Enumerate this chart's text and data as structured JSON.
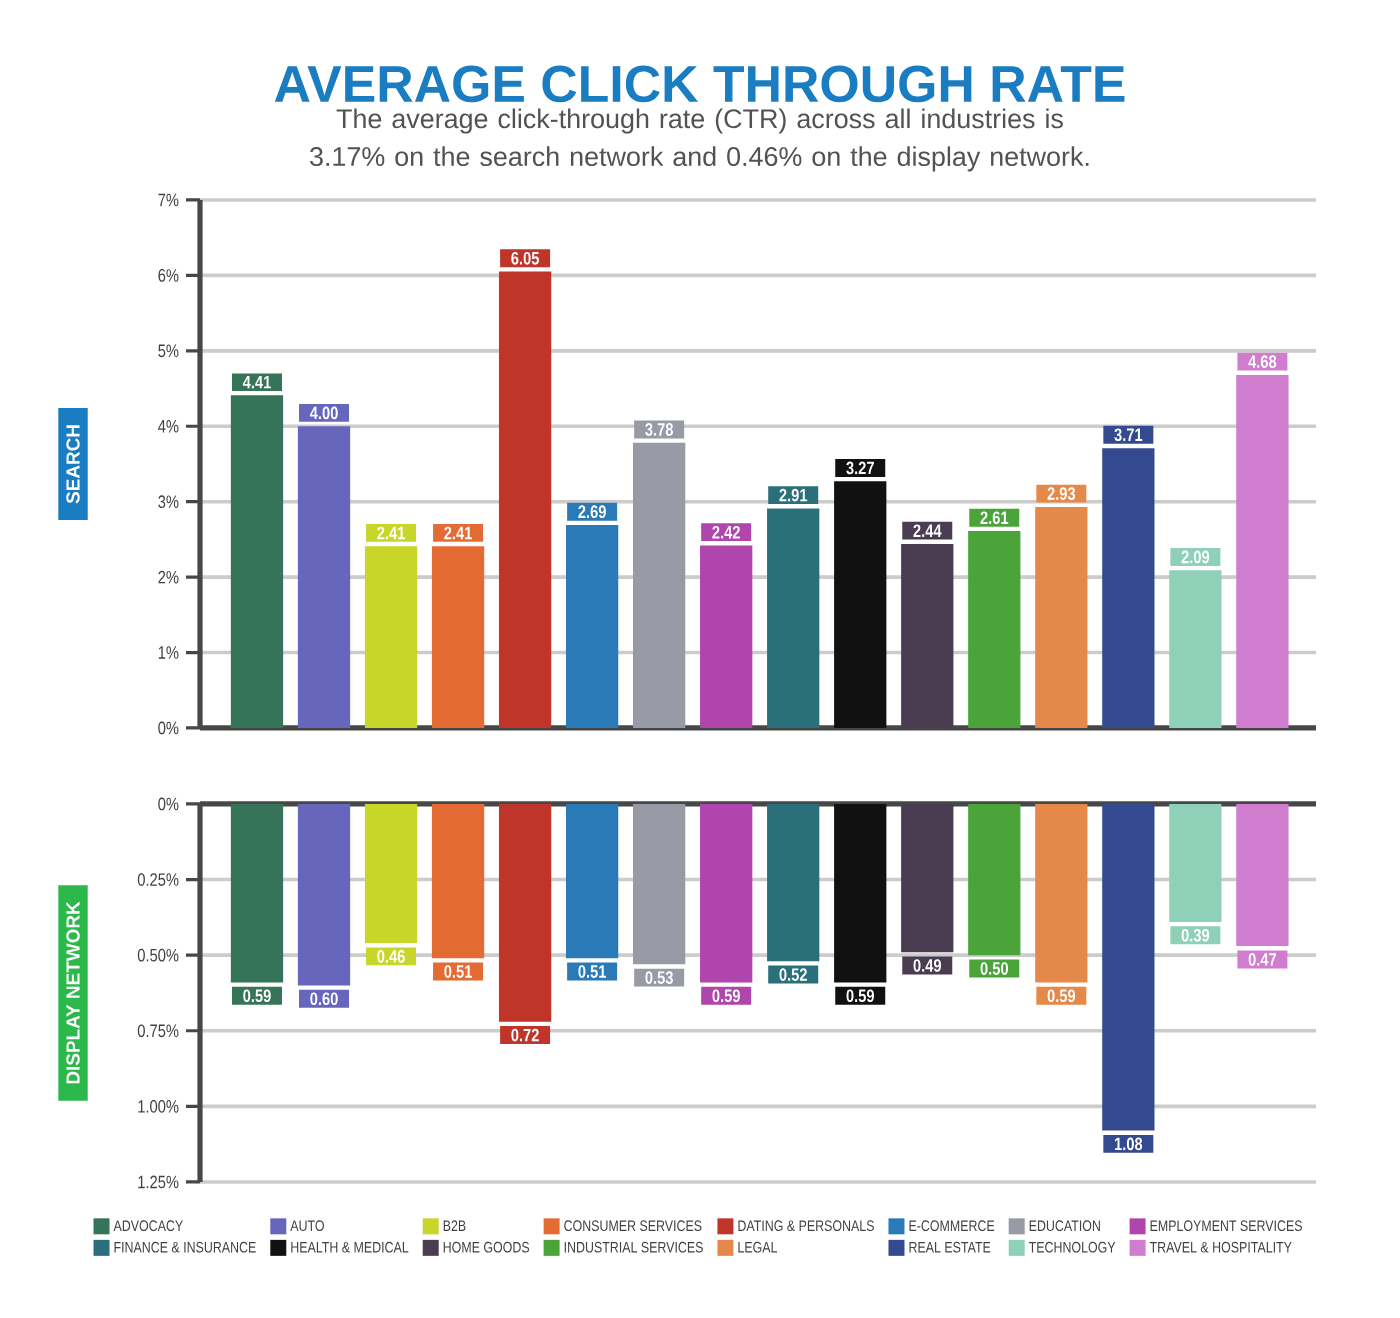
{
  "chart_data": [
    {
      "type": "bar",
      "title": "AVERAGE CLICK THROUGH RATE",
      "subtitle": "The average click-through rate (CTR) across all industries is 3.17% on the search network and 0.46% on the display network.",
      "ylabel": "SEARCH",
      "categories": [
        null,
        null,
        null,
        null,
        null,
        null,
        null,
        null,
        null,
        null,
        null,
        null,
        null,
        null,
        null,
        null
      ],
      "values": [
        4.41,
        4.0,
        2.41,
        2.41,
        6.05,
        2.69,
        3.78,
        2.42,
        2.91,
        3.27,
        2.44,
        2.61,
        2.93,
        3.71,
        2.09,
        4.68
      ],
      "value_labels": [
        "4.41",
        "4.00",
        "2.41",
        "2.41",
        "6.05",
        "2.69",
        "3.78",
        "2.42",
        "2.91",
        "3.27",
        "2.44",
        "2.61",
        "2.93",
        "3.71",
        "2.09",
        "4.68"
      ],
      "colors": [
        "#367459",
        "#6766bd",
        "#c8d62a",
        "#e56b35",
        "#c0352a",
        "#2a7ab8",
        "#989aa6",
        "#b045ad",
        "#2a6f7a",
        "#111111",
        "#4a3d52",
        "#4aa43a",
        "#e5894a",
        "#344a90",
        "#8fd0b8",
        "#d07ccf"
      ],
      "ylim": [
        0,
        7
      ],
      "yticks": [
        {
          "value": 0,
          "label": "0%"
        },
        {
          "value": 1,
          "label": "1%"
        },
        {
          "value": 2,
          "label": "2%"
        },
        {
          "value": 3,
          "label": "3%"
        },
        {
          "value": 4,
          "label": "4%"
        },
        {
          "value": 5,
          "label": "5%"
        },
        {
          "value": 6,
          "label": "6%"
        },
        {
          "value": 7,
          "label": "7%"
        }
      ],
      "grid": "y"
    },
    {
      "type": "bar",
      "ylabel": "DISPLAY NETWORK",
      "categories": [
        null,
        null,
        null,
        null,
        null,
        null,
        null,
        null,
        null,
        null,
        null,
        null,
        null,
        null,
        null,
        null
      ],
      "series": [
        {
          "name": "ADVOCACY",
          "color": "#367459",
          "values": [
            0.59,
            null,
            null,
            null,
            null,
            null,
            null,
            null,
            null,
            null,
            null,
            null,
            null,
            null,
            null,
            null
          ],
          "value_labels": [
            "0.59",
            null,
            null,
            null,
            null,
            null,
            null,
            null,
            null,
            null,
            null,
            null,
            null,
            null,
            null,
            null
          ]
        },
        {
          "name": "AUTO",
          "color": "#6766bd",
          "values": [
            null,
            0.6,
            null,
            null,
            null,
            null,
            null,
            null,
            null,
            null,
            null,
            null,
            null,
            null,
            null,
            null
          ],
          "value_labels": [
            null,
            "0.60",
            null,
            null,
            null,
            null,
            null,
            null,
            null,
            null,
            null,
            null,
            null,
            null,
            null,
            null
          ]
        },
        {
          "name": "B2B",
          "color": "#c8d62a",
          "values": [
            null,
            null,
            0.46,
            null,
            null,
            null,
            null,
            null,
            null,
            null,
            null,
            null,
            null,
            null,
            null,
            null
          ],
          "value_labels": [
            null,
            null,
            "0.46",
            null,
            null,
            null,
            null,
            null,
            null,
            null,
            null,
            null,
            null,
            null,
            null,
            null
          ]
        },
        {
          "name": "CONSUMER SERVICES",
          "color": "#e56b35",
          "values": [
            null,
            null,
            null,
            0.51,
            null,
            null,
            null,
            null,
            null,
            null,
            null,
            null,
            null,
            null,
            null,
            null
          ],
          "value_labels": [
            null,
            null,
            null,
            "0.51",
            null,
            null,
            null,
            null,
            null,
            null,
            null,
            null,
            null,
            null,
            null,
            null
          ]
        },
        {
          "name": "DATING & PERSONALS",
          "color": "#c0352a",
          "values": [
            null,
            null,
            null,
            null,
            0.72,
            null,
            null,
            null,
            null,
            null,
            null,
            null,
            null,
            null,
            null,
            null
          ],
          "value_labels": [
            null,
            null,
            null,
            null,
            "0.72",
            null,
            null,
            null,
            null,
            null,
            null,
            null,
            null,
            null,
            null,
            null
          ]
        },
        {
          "name": "E-COMMERCE",
          "color": "#2a7ab8",
          "values": [
            null,
            null,
            null,
            null,
            null,
            0.51,
            null,
            null,
            null,
            null,
            null,
            null,
            null,
            null,
            null,
            null
          ],
          "value_labels": [
            null,
            null,
            null,
            null,
            null,
            "0.51",
            null,
            null,
            null,
            null,
            null,
            null,
            null,
            null,
            null,
            null
          ]
        },
        {
          "name": "EDUCATION",
          "color": "#989aa6",
          "values": [
            null,
            null,
            null,
            null,
            null,
            null,
            0.53,
            null,
            null,
            null,
            null,
            null,
            null,
            null,
            null,
            null
          ],
          "value_labels": [
            null,
            null,
            null,
            null,
            null,
            null,
            "0.53",
            null,
            null,
            null,
            null,
            null,
            null,
            null,
            null,
            null
          ]
        },
        {
          "name": "EMPLOYMENT SERVICES",
          "color": "#b045ad",
          "values": [
            null,
            null,
            null,
            null,
            null,
            null,
            null,
            0.59,
            null,
            null,
            null,
            null,
            null,
            null,
            null,
            null
          ],
          "value_labels": [
            null,
            null,
            null,
            null,
            null,
            null,
            null,
            "0.59",
            null,
            null,
            null,
            null,
            null,
            null,
            null,
            null
          ]
        },
        {
          "name": "FINANCE & INSURANCE",
          "color": "#2a6f7a",
          "values": [
            null,
            null,
            null,
            null,
            null,
            null,
            null,
            null,
            0.52,
            null,
            null,
            null,
            null,
            null,
            null,
            null
          ],
          "value_labels": [
            null,
            null,
            null,
            null,
            null,
            null,
            null,
            null,
            "0.52",
            null,
            null,
            null,
            null,
            null,
            null,
            null
          ]
        },
        {
          "name": "HEALTH & MEDICAL",
          "color": "#111111",
          "values": [
            null,
            null,
            null,
            null,
            null,
            null,
            null,
            null,
            null,
            0.59,
            null,
            null,
            null,
            null,
            null,
            null
          ],
          "value_labels": [
            null,
            null,
            null,
            null,
            null,
            null,
            null,
            null,
            null,
            "0.59",
            null,
            null,
            null,
            null,
            null,
            null
          ]
        },
        {
          "name": "HOME GOODS",
          "color": "#4a3d52",
          "values": [
            null,
            null,
            null,
            null,
            null,
            null,
            null,
            null,
            null,
            null,
            0.49,
            null,
            null,
            null,
            null,
            null
          ],
          "value_labels": [
            null,
            null,
            null,
            null,
            null,
            null,
            null,
            null,
            null,
            null,
            "0.49",
            null,
            null,
            null,
            null,
            null
          ]
        },
        {
          "name": "INDUSTRIAL SERVICES",
          "color": "#4aa43a",
          "values": [
            null,
            null,
            null,
            null,
            null,
            null,
            null,
            null,
            null,
            null,
            null,
            0.5,
            null,
            null,
            null,
            null
          ],
          "value_labels": [
            null,
            null,
            null,
            null,
            null,
            null,
            null,
            null,
            null,
            null,
            null,
            "0.50",
            null,
            null,
            null,
            null
          ]
        },
        {
          "name": "LEGAL",
          "color": "#e5894a",
          "values": [
            null,
            null,
            null,
            null,
            null,
            null,
            null,
            null,
            null,
            null,
            null,
            null,
            0.59,
            null,
            null,
            null
          ],
          "value_labels": [
            null,
            null,
            null,
            null,
            null,
            null,
            null,
            null,
            null,
            null,
            null,
            null,
            "0.59",
            null,
            null,
            null
          ]
        },
        {
          "name": "REAL ESTATE",
          "color": "#344a90",
          "values": [
            null,
            null,
            null,
            null,
            null,
            null,
            null,
            null,
            null,
            null,
            null,
            null,
            null,
            1.08,
            null,
            null
          ],
          "value_labels": [
            null,
            null,
            null,
            null,
            null,
            null,
            null,
            null,
            null,
            null,
            null,
            null,
            null,
            "1.08",
            null,
            null
          ]
        },
        {
          "name": "TECHNOLOGY",
          "color": "#8fd0b8",
          "values": [
            null,
            null,
            null,
            null,
            null,
            null,
            null,
            null,
            null,
            null,
            null,
            null,
            null,
            null,
            0.39,
            null
          ],
          "value_labels": [
            null,
            null,
            null,
            null,
            null,
            null,
            null,
            null,
            null,
            null,
            null,
            null,
            null,
            null,
            "0.39",
            null
          ]
        },
        {
          "name": "TRAVEL & HOSPITALITY",
          "color": "#d07ccf",
          "values": [
            null,
            null,
            null,
            null,
            null,
            null,
            null,
            null,
            null,
            null,
            null,
            null,
            null,
            null,
            null,
            0.47
          ],
          "value_labels": [
            null,
            null,
            null,
            null,
            null,
            null,
            null,
            null,
            null,
            null,
            null,
            null,
            null,
            null,
            null,
            "0.47"
          ]
        }
      ],
      "ylim": [
        1.25,
        0
      ],
      "yticks": [
        {
          "value": 0,
          "label": "0%"
        },
        {
          "value": 0.25,
          "label": "0.25%"
        },
        {
          "value": 0.5,
          "label": "0.50%"
        },
        {
          "value": 0.75,
          "label": "0.75%"
        },
        {
          "value": 1,
          "label": "1.00%"
        },
        {
          "value": 1.25,
          "label": "1.25%"
        }
      ],
      "grid": "y",
      "legend": "bottom"
    }
  ]
}
